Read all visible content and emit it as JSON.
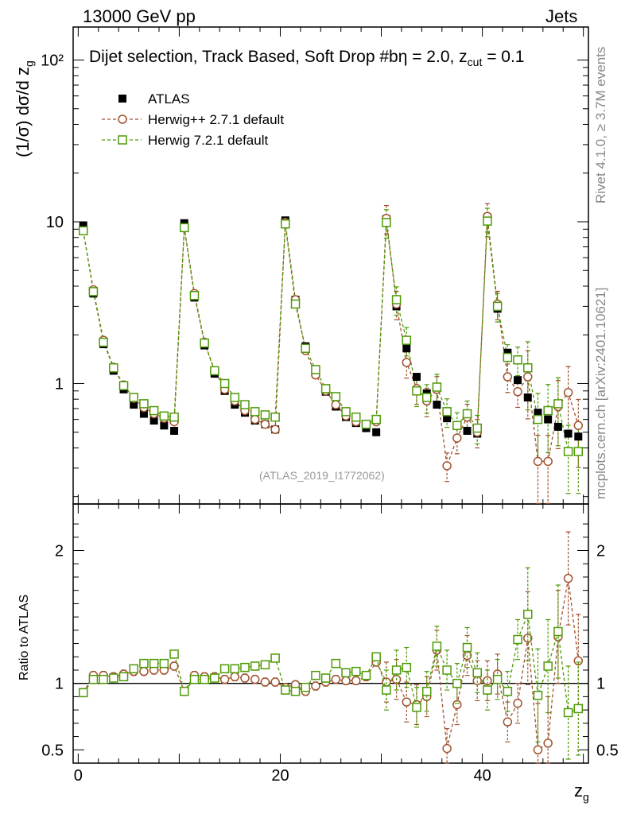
{
  "header": {
    "energy_label": "13000 GeV pp",
    "process_label": "Jets"
  },
  "rivet_label": "Rivet 4.1.0, ≥ 3.7M events",
  "mcplots_label": "mcplots.cern.ch [arXiv:2401.10621]",
  "analysis_label": "(ATLAS_2019_I1772062)",
  "chart_data": {
    "type": "scatter",
    "title": "Dijet selection, Track Based, Soft Drop #b",
    "title_suffix": "η = 2.0, z",
    "title_sub": "cut",
    "title_end": " = 0.1",
    "xlabel": "z",
    "xlabel_sub": "g",
    "ylabel": "(1/σ) dσ/d z",
    "ylabel_sub": "g",
    "ratio_ylabel": "Ratio to ATLAS",
    "xlim": [
      -0.5,
      50.5
    ],
    "ylim": [
      0.18,
      160
    ],
    "ylog": true,
    "ratio_ylim": [
      0.4,
      2.35
    ],
    "x_ticks": [
      "0",
      "20",
      "40"
    ],
    "y_ticks": [
      "1",
      "10",
      "10²"
    ],
    "ratio_ticks": [
      "0.5",
      "1",
      "2"
    ],
    "x": [
      0.5,
      1.5,
      2.5,
      3.5,
      4.5,
      5.5,
      6.5,
      7.5,
      8.5,
      9.5,
      10.5,
      11.5,
      12.5,
      13.5,
      14.5,
      15.5,
      16.5,
      17.5,
      18.5,
      19.5,
      20.5,
      21.5,
      22.5,
      23.5,
      24.5,
      25.5,
      26.5,
      27.5,
      28.5,
      29.5,
      30.5,
      31.5,
      32.5,
      33.5,
      34.5,
      35.5,
      36.5,
      37.5,
      38.5,
      39.5,
      40.5,
      41.5,
      42.5,
      43.5,
      44.5,
      45.5,
      46.5,
      47.5,
      48.5,
      49.5
    ],
    "series": [
      {
        "name": "ATLAS",
        "color": "#000000",
        "marker": "filled-square",
        "values": [
          9.5,
          3.6,
          1.75,
          1.2,
          0.92,
          0.74,
          0.65,
          0.59,
          0.55,
          0.51,
          9.8,
          3.4,
          1.72,
          1.15,
          0.9,
          0.74,
          0.66,
          0.59,
          0.56,
          0.52,
          10.2,
          3.3,
          1.7,
          1.15,
          0.89,
          0.72,
          0.62,
          0.57,
          0.53,
          0.5,
          10.4,
          3.0,
          1.65,
          1.1,
          0.87,
          0.74,
          0.61,
          0.55,
          0.51,
          0.49,
          10.6,
          2.9,
          1.55,
          1.05,
          0.82,
          0.66,
          0.6,
          0.54,
          0.49,
          0.47
        ]
      },
      {
        "name": "Herwig++ 2.7.1 default",
        "color": "#a0522d",
        "marker": "open-circle",
        "values": [
          8.8,
          3.8,
          1.85,
          1.26,
          0.98,
          0.81,
          0.71,
          0.65,
          0.61,
          0.58,
          9.2,
          3.6,
          1.8,
          1.2,
          0.92,
          0.78,
          0.68,
          0.6,
          0.56,
          0.52,
          9.9,
          3.3,
          1.6,
          1.13,
          0.9,
          0.74,
          0.63,
          0.58,
          0.56,
          0.58,
          10.5,
          3.1,
          1.35,
          0.93,
          0.78,
          0.92,
          0.31,
          0.46,
          0.62,
          0.5,
          10.8,
          3.1,
          1.1,
          0.89,
          1.1,
          0.33,
          0.33,
          0.72,
          0.88,
          0.55
        ]
      },
      {
        "name": "Herwig 7.2.1 default",
        "color": "#4e9a06",
        "marker": "open-square",
        "values": [
          8.8,
          3.7,
          1.8,
          1.25,
          0.97,
          0.82,
          0.75,
          0.68,
          0.63,
          0.62,
          9.2,
          3.5,
          1.78,
          1.2,
          1.0,
          0.82,
          0.74,
          0.67,
          0.64,
          0.62,
          9.7,
          3.1,
          1.65,
          1.22,
          0.93,
          0.83,
          0.67,
          0.62,
          0.56,
          0.6,
          9.9,
          3.3,
          1.85,
          0.9,
          0.82,
          0.95,
          0.67,
          0.55,
          0.65,
          0.53,
          10.1,
          3.0,
          1.45,
          1.4,
          1.25,
          0.6,
          0.68,
          0.75,
          0.38,
          0.38
        ]
      }
    ],
    "ratios": [
      {
        "name": "Herwig++ 2.7.1 default",
        "values": [
          0.93,
          1.06,
          1.06,
          1.05,
          1.07,
          1.09,
          1.09,
          1.1,
          1.1,
          1.13,
          0.94,
          1.06,
          1.05,
          1.05,
          1.03,
          1.05,
          1.04,
          1.03,
          1.01,
          1.01,
          0.97,
          0.99,
          0.94,
          0.98,
          1.01,
          1.03,
          1.02,
          1.02,
          1.05,
          1.16,
          1.01,
          1.03,
          0.86,
          0.84,
          0.9,
          1.25,
          0.51,
          0.84,
          1.21,
          1.02,
          1.02,
          1.07,
          0.71,
          0.85,
          1.34,
          0.5,
          0.55,
          1.35,
          1.79,
          1.17
        ]
      },
      {
        "name": "Herwig 7.2.1 default",
        "values": [
          0.93,
          1.03,
          1.03,
          1.04,
          1.05,
          1.11,
          1.15,
          1.15,
          1.15,
          1.22,
          0.94,
          1.03,
          1.03,
          1.04,
          1.11,
          1.11,
          1.12,
          1.13,
          1.14,
          1.19,
          0.95,
          0.94,
          0.97,
          1.06,
          1.04,
          1.15,
          1.08,
          1.09,
          1.06,
          1.2,
          0.95,
          1.1,
          1.12,
          0.82,
          0.94,
          1.28,
          1.1,
          1.0,
          1.27,
          1.08,
          0.95,
          1.03,
          0.94,
          1.33,
          1.52,
          0.91,
          1.13,
          1.39,
          0.78,
          0.81
        ]
      }
    ],
    "legend_position": "top-left"
  }
}
